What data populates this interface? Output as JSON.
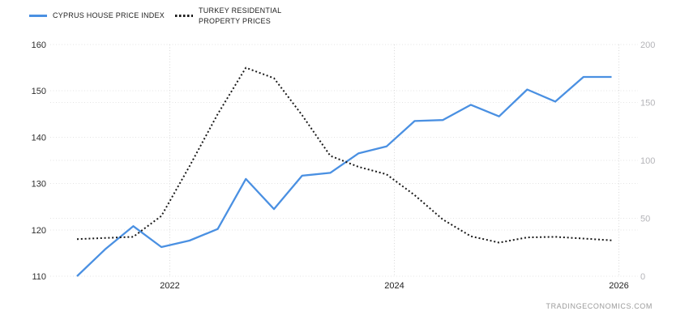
{
  "legend": {
    "items": [
      {
        "label": "CYPRUS HOUSE PRICE INDEX",
        "color": "#4a90e2",
        "style": "solid"
      },
      {
        "label": "TURKEY RESIDENTIAL PROPERTY PRICES",
        "color": "#1a1a1a",
        "style": "dotted"
      }
    ]
  },
  "watermark": "TRADINGECONOMICS.COM",
  "chart_data": {
    "type": "line",
    "x": [
      "2021-Q2",
      "2021-Q3",
      "2021-Q4",
      "2022-Q1",
      "2022-Q2",
      "2022-Q3",
      "2022-Q4",
      "2023-Q1",
      "2023-Q2",
      "2023-Q3",
      "2023-Q4",
      "2024-Q1",
      "2024-Q2",
      "2024-Q3",
      "2024-Q4",
      "2025-Q1",
      "2025-Q2",
      "2025-Q3",
      "2025-Q4",
      "2026-Q1"
    ],
    "series": [
      {
        "name": "CYPRUS HOUSE PRICE INDEX",
        "axis": "left",
        "color": "#4a90e2",
        "dash": "solid",
        "values": [
          110,
          115.8,
          120.8,
          116.3,
          117.7,
          120.2,
          131,
          124.5,
          131.7,
          132.3,
          136.5,
          138,
          143.5,
          143.7,
          147,
          144.5,
          150.3,
          147.7,
          153,
          153
        ]
      },
      {
        "name": "TURKEY RESIDENTIAL PROPERTY PRICES",
        "axis": "right",
        "color": "#1a1a1a",
        "dash": "dotted",
        "values": [
          32,
          33,
          34,
          52,
          95,
          140,
          180,
          171,
          139,
          104,
          94.5,
          88,
          70,
          49,
          34.5,
          29,
          33.5,
          34,
          32.5,
          31
        ]
      }
    ],
    "left_axis": {
      "ticks": [
        110,
        120,
        130,
        140,
        150,
        160
      ],
      "range": [
        110,
        160
      ]
    },
    "right_axis": {
      "ticks": [
        0,
        50,
        100,
        150,
        200
      ],
      "range": [
        0,
        200
      ]
    },
    "x_axis": {
      "tick_labels": [
        "2022",
        "2024",
        "2026"
      ]
    },
    "grid": "dotted",
    "legend_position": "top-left"
  }
}
